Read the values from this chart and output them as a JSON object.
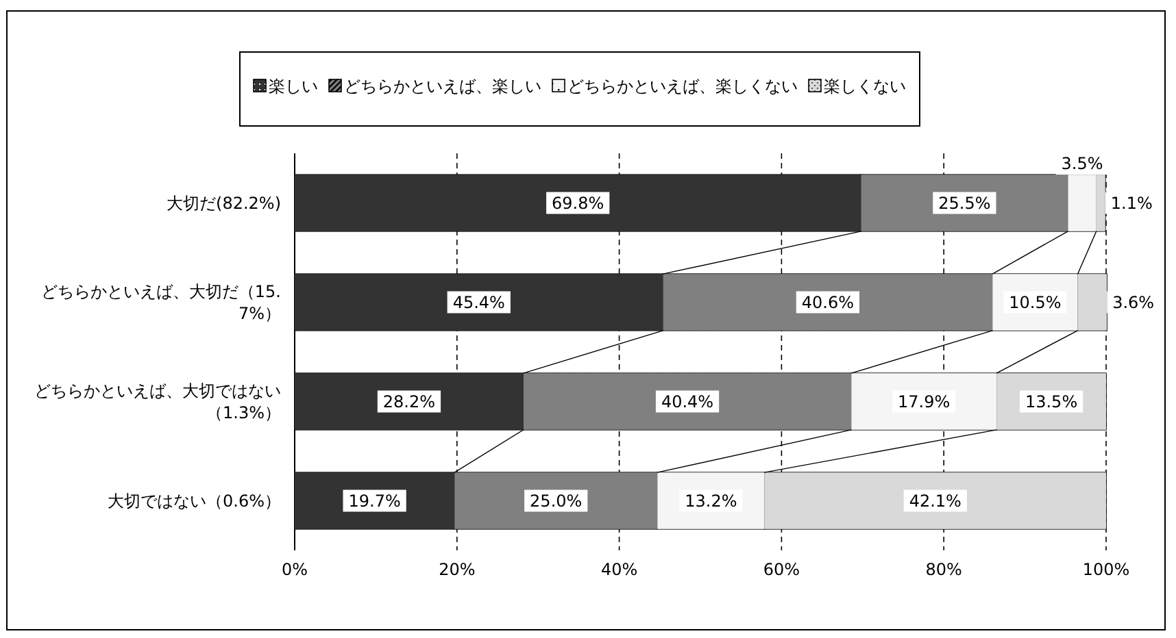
{
  "chart_data": {
    "type": "bar",
    "orientation": "horizontal",
    "stacked": true,
    "legend": "top",
    "grid": "x",
    "categories": [
      "大切だ(82.2%)",
      "どちらかといえば、大切だ（15.7%）",
      "どちらかといえば、大切ではない（1.3%）",
      "大切ではない（0.6%）"
    ],
    "xlim": [
      0,
      100
    ],
    "xticks": [
      {
        "value": 0,
        "label": "0%"
      },
      {
        "value": 20,
        "label": "20%"
      },
      {
        "value": 40,
        "label": "40%"
      },
      {
        "value": 60,
        "label": "60%"
      },
      {
        "value": 80,
        "label": "80%"
      },
      {
        "value": 100,
        "label": "100%"
      }
    ],
    "series": [
      {
        "name": "楽しい",
        "color": "#333333",
        "values": [
          69.8,
          45.4,
          28.2,
          19.7
        ],
        "value_labels": [
          "69.8%",
          "45.4%",
          "28.2%",
          "19.7%"
        ]
      },
      {
        "name": "どちらかといえば、楽しい",
        "color": "#808080",
        "values": [
          25.5,
          40.6,
          40.4,
          25.0
        ],
        "value_labels": [
          "25.5%",
          "40.6%",
          "40.4%",
          "25.0%"
        ]
      },
      {
        "name": "どちらかといえば、楽しくない",
        "color": "#f5f5f5",
        "values": [
          3.5,
          10.5,
          17.9,
          13.2
        ],
        "value_labels": [
          "3.5%",
          "10.5%",
          "17.9%",
          "13.2%"
        ]
      },
      {
        "name": "楽しくない",
        "color": "#d9d9d9",
        "values": [
          1.1,
          3.6,
          13.5,
          42.1
        ],
        "value_labels": [
          "1.1%",
          "3.6%",
          "13.5%",
          "42.1%"
        ]
      }
    ]
  }
}
